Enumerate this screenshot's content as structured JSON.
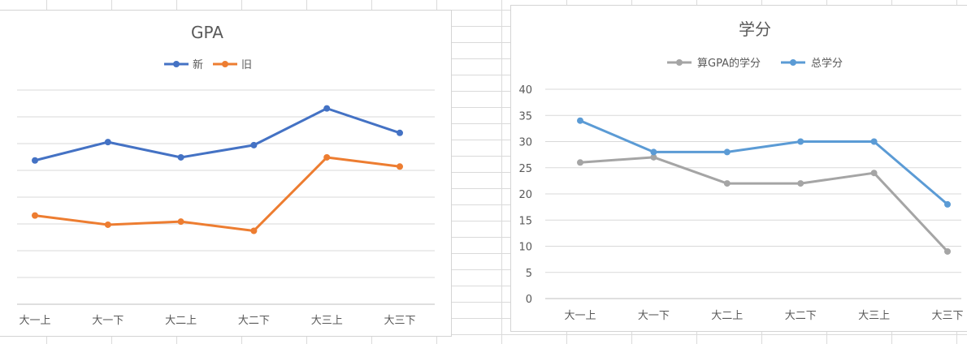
{
  "chart_data": [
    {
      "type": "line",
      "title": "GPA",
      "categories": [
        "大一上",
        "大一下",
        "大二上",
        "大二下",
        "大三上",
        "大三下"
      ],
      "series": [
        {
          "name": "新",
          "color": "#4472C4",
          "values": [
            3.47,
            3.53,
            3.48,
            3.52,
            3.64,
            3.56
          ]
        },
        {
          "name": "旧",
          "color": "#ED7D31",
          "values": [
            3.29,
            3.26,
            3.27,
            3.24,
            3.48,
            3.45
          ]
        }
      ],
      "ylim": [
        3.0,
        3.7
      ],
      "yticks_shown": false,
      "grid": true,
      "legend": "top"
    },
    {
      "type": "line",
      "title": "学分",
      "categories": [
        "大一上",
        "大一下",
        "大二上",
        "大二下",
        "大三上",
        "大三下"
      ],
      "series": [
        {
          "name": "算GPA的学分",
          "color": "#A5A5A5",
          "values": [
            26,
            27,
            22,
            22,
            24,
            9
          ]
        },
        {
          "name": "总学分",
          "color": "#5B9BD5",
          "values": [
            34,
            28,
            28,
            30,
            30,
            18
          ]
        }
      ],
      "ylim": [
        0,
        40
      ],
      "yticks": [
        0,
        5,
        10,
        15,
        20,
        25,
        30,
        35,
        40
      ],
      "grid": true,
      "legend": "top"
    }
  ]
}
